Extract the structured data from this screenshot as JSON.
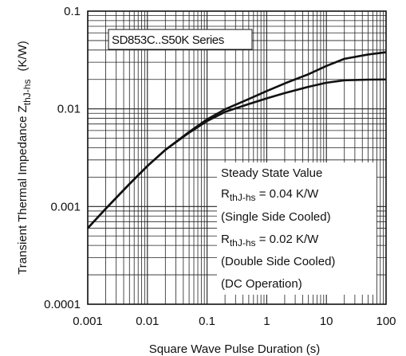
{
  "chart_data": {
    "type": "line",
    "title": "",
    "xlabel": "Square Wave Pulse Duration (s)",
    "ylabel": {
      "main": "Transient Thermal Impedance Z",
      "sub": "thJ-hs",
      "unit": "(K/W)"
    },
    "x_scale": "log",
    "y_scale": "log",
    "xlim": [
      0.001,
      100
    ],
    "ylim": [
      0.0001,
      0.1
    ],
    "x_ticks": [
      0.001,
      0.01,
      0.1,
      1,
      10,
      100
    ],
    "x_tick_labels": [
      "0.001",
      "0.01",
      "0.1",
      "1",
      "10",
      "100"
    ],
    "y_ticks": [
      0.0001,
      0.001,
      0.01,
      0.1
    ],
    "y_tick_labels": [
      "0.0001",
      "0.001",
      "0.01",
      "0.1"
    ],
    "grid": true,
    "series_label": "SD853C..S50K Series",
    "annotation": {
      "line1": "Steady State Value",
      "line2_main": "R",
      "line2_sub": "thJ-hs",
      "line2_value": " = 0.04 K/W",
      "line3": "(Single Side Cooled)",
      "line4_main": "R",
      "line4_sub": "thJ-hs",
      "line4_value": " = 0.02 K/W",
      "line5": "(Double Side Cooled)",
      "line6": "(DC Operation)"
    },
    "series": [
      {
        "x": [
          0.001,
          0.002,
          0.005,
          0.01,
          0.02,
          0.05,
          0.1,
          0.2,
          0.5,
          1,
          2,
          5,
          10,
          20,
          50,
          100
        ],
        "values": [
          0.0006,
          0.00095,
          0.0017,
          0.0026,
          0.0038,
          0.0058,
          0.0078,
          0.0099,
          0.0126,
          0.0152,
          0.0182,
          0.0226,
          0.0275,
          0.0325,
          0.036,
          0.038
        ]
      },
      {
        "x": [
          0.001,
          0.002,
          0.005,
          0.01,
          0.02,
          0.05,
          0.1,
          0.2,
          0.5,
          1,
          2,
          5,
          10,
          20,
          50,
          100
        ],
        "values": [
          0.0006,
          0.00095,
          0.0017,
          0.0026,
          0.0038,
          0.0057,
          0.0075,
          0.0093,
          0.0112,
          0.0128,
          0.0145,
          0.0168,
          0.0185,
          0.0196,
          0.0199,
          0.02
        ]
      }
    ]
  }
}
